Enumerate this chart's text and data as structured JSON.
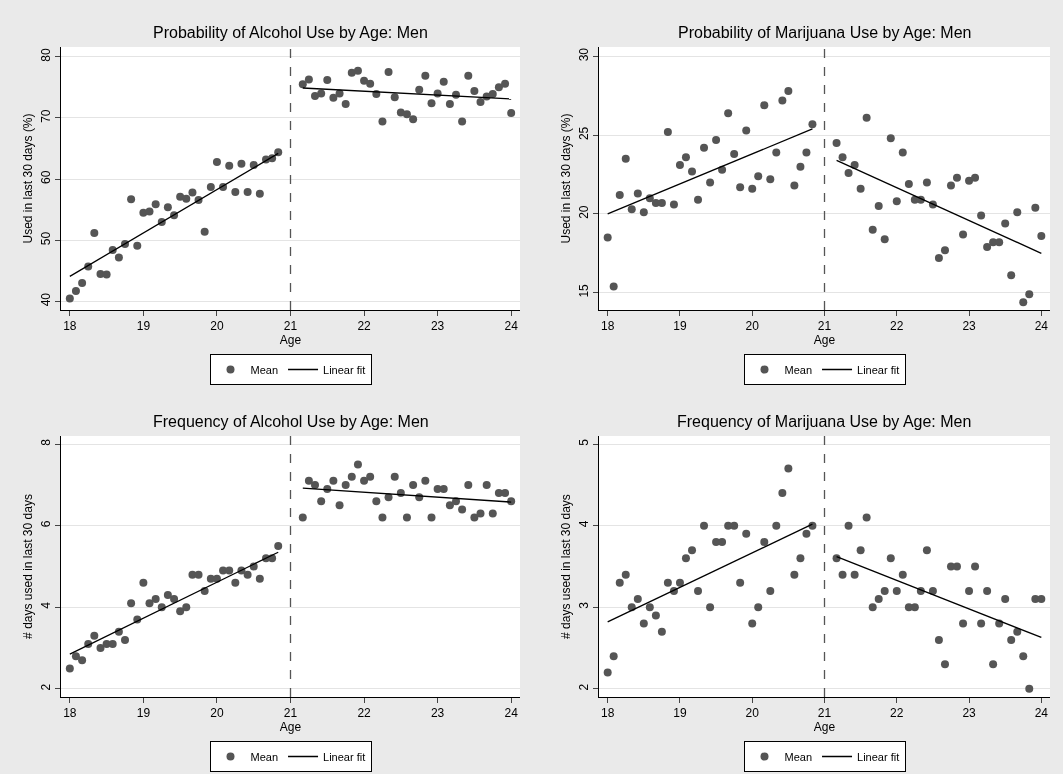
{
  "chart_data": [
    {
      "type": "scatter",
      "title": "Probability of Alcohol Use by Age: Men",
      "xlabel": "Age",
      "ylabel": "Used in last 30 days (%)",
      "xlim": [
        17.88,
        24.12
      ],
      "xticks": [
        18,
        19,
        20,
        21,
        22,
        23,
        24
      ],
      "ylim": [
        38.6,
        81.6
      ],
      "yticks": [
        40,
        50,
        60,
        70,
        80
      ],
      "grid": "y",
      "legend": "bottom",
      "ref_lines": [
        {
          "axis": "x",
          "value": 21,
          "color": "#555555",
          "line_style": "dashed"
        }
      ],
      "x": [
        18,
        18.083,
        18.167,
        18.25,
        18.333,
        18.417,
        18.5,
        18.583,
        18.667,
        18.75,
        18.833,
        18.917,
        19,
        19.083,
        19.167,
        19.25,
        19.333,
        19.417,
        19.5,
        19.583,
        19.667,
        19.75,
        19.833,
        19.917,
        20,
        20.083,
        20.167,
        20.25,
        20.333,
        20.417,
        20.5,
        20.583,
        20.667,
        20.75,
        20.833,
        21.167,
        21.25,
        21.333,
        21.417,
        21.5,
        21.583,
        21.667,
        21.75,
        21.833,
        21.917,
        22,
        22.083,
        22.167,
        22.25,
        22.333,
        22.417,
        22.5,
        22.583,
        22.667,
        22.75,
        22.833,
        22.917,
        23,
        23.083,
        23.167,
        23.25,
        23.333,
        23.417,
        23.5,
        23.583,
        23.667,
        23.75,
        23.833,
        23.917,
        24
      ],
      "series": [
        {
          "name": "Mean",
          "marker": "circle",
          "color": "#555555",
          "values": [
            40.5,
            41.7,
            43.0,
            45.7,
            51.2,
            44.5,
            44.4,
            48.4,
            47.2,
            49.4,
            56.7,
            49.1,
            54.5,
            54.7,
            55.9,
            53.0,
            55.4,
            54.1,
            57.1,
            56.8,
            57.8,
            56.6,
            51.4,
            58.7,
            62.8,
            58.7,
            62.2,
            57.9,
            62.5,
            57.9,
            62.3,
            57.6,
            63.2,
            63.4,
            64.4,
            75.5,
            76.3,
            73.6,
            74.0,
            76.2,
            73.3,
            74.0,
            72.3,
            77.4,
            77.7,
            76.1,
            75.6,
            73.9,
            69.4,
            77.5,
            73.4,
            70.9,
            70.6,
            69.8,
            74.6,
            76.9,
            72.4,
            74.0,
            75.9,
            72.3,
            73.8,
            69.4,
            76.9,
            74.4,
            72.6,
            73.5,
            73.9,
            75.0,
            75.6,
            70.8
          ]
        },
        {
          "name": "Linear fit",
          "type": "line",
          "color": "#000000",
          "line_style": "solid",
          "x": [
            18,
            20.833,
            21,
            21.167,
            24
          ],
          "values": [
            44.1,
            64.2,
            null,
            74.9,
            73.1
          ]
        }
      ]
    },
    {
      "type": "scatter",
      "title": "Probability of Marijuana Use by Age: Men",
      "xlabel": "Age",
      "ylabel": "Used in last 30 days (%)",
      "xlim": [
        17.88,
        24.12
      ],
      "xticks": [
        18,
        19,
        20,
        21,
        22,
        23,
        24
      ],
      "ylim": [
        13.9,
        30.6
      ],
      "yticks": [
        15,
        20,
        25,
        30
      ],
      "grid": "y",
      "legend": "bottom",
      "ref_lines": [
        {
          "axis": "x",
          "value": 21,
          "color": "#555555",
          "line_style": "dashed"
        }
      ],
      "x": [
        18,
        18.083,
        18.167,
        18.25,
        18.333,
        18.417,
        18.5,
        18.583,
        18.667,
        18.75,
        18.833,
        18.917,
        19,
        19.083,
        19.167,
        19.25,
        19.333,
        19.417,
        19.5,
        19.583,
        19.667,
        19.75,
        19.833,
        19.917,
        20,
        20.083,
        20.167,
        20.25,
        20.333,
        20.417,
        20.5,
        20.583,
        20.667,
        20.75,
        20.833,
        21.167,
        21.25,
        21.333,
        21.417,
        21.5,
        21.583,
        21.667,
        21.75,
        21.833,
        21.917,
        22,
        22.083,
        22.167,
        22.25,
        22.333,
        22.417,
        22.5,
        22.583,
        22.667,
        22.75,
        22.833,
        22.917,
        23,
        23.083,
        23.167,
        23.25,
        23.333,
        23.417,
        23.5,
        23.583,
        23.667,
        23.75,
        23.833,
        23.917,
        24
      ],
      "series": [
        {
          "name": "Mean",
          "marker": "circle",
          "color": "#555555",
          "values": [
            18.5,
            15.4,
            21.2,
            23.5,
            20.3,
            21.3,
            20.1,
            21.0,
            20.7,
            20.7,
            25.2,
            20.6,
            23.1,
            23.6,
            22.7,
            20.9,
            24.2,
            22.0,
            24.7,
            22.8,
            26.4,
            23.8,
            21.7,
            25.3,
            21.6,
            22.4,
            26.9,
            22.2,
            23.9,
            27.2,
            27.8,
            21.8,
            23.0,
            23.9,
            25.7,
            24.5,
            23.6,
            22.6,
            23.1,
            21.6,
            26.1,
            19.0,
            20.5,
            18.4,
            24.8,
            20.8,
            23.9,
            21.9,
            20.9,
            20.9,
            22.0,
            20.6,
            17.2,
            17.7,
            21.8,
            22.3,
            18.7,
            22.1,
            22.3,
            19.9,
            17.9,
            18.2,
            18.2,
            19.4,
            16.1,
            20.1,
            14.4,
            14.9,
            20.4,
            18.6
          ]
        },
        {
          "name": "Linear fit",
          "type": "line",
          "color": "#000000",
          "line_style": "solid",
          "x": [
            18,
            20.833,
            21,
            21.167,
            24
          ],
          "values": [
            20.0,
            25.4,
            null,
            23.4,
            17.5
          ]
        }
      ]
    },
    {
      "type": "scatter",
      "title": "Frequency of Alcohol Use by Age: Men",
      "xlabel": "Age",
      "ylabel": "# days used in last 30 days",
      "xlim": [
        17.88,
        24.12
      ],
      "xticks": [
        18,
        19,
        20,
        21,
        22,
        23,
        24
      ],
      "ylim": [
        1.8,
        8.2
      ],
      "yticks": [
        2,
        4,
        6,
        8
      ],
      "grid": "y",
      "legend": "bottom",
      "ref_lines": [
        {
          "axis": "x",
          "value": 21,
          "color": "#555555",
          "line_style": "dashed"
        }
      ],
      "x": [
        18,
        18.083,
        18.167,
        18.25,
        18.333,
        18.417,
        18.5,
        18.583,
        18.667,
        18.75,
        18.833,
        18.917,
        19,
        19.083,
        19.167,
        19.25,
        19.333,
        19.417,
        19.5,
        19.583,
        19.667,
        19.75,
        19.833,
        19.917,
        20,
        20.083,
        20.167,
        20.25,
        20.333,
        20.417,
        20.5,
        20.583,
        20.667,
        20.75,
        20.833,
        21.167,
        21.25,
        21.333,
        21.417,
        21.5,
        21.583,
        21.667,
        21.75,
        21.833,
        21.917,
        22,
        22.083,
        22.167,
        22.25,
        22.333,
        22.417,
        22.5,
        22.583,
        22.667,
        22.75,
        22.833,
        22.917,
        23,
        23.083,
        23.167,
        23.25,
        23.333,
        23.417,
        23.5,
        23.583,
        23.667,
        23.75,
        23.833,
        23.917,
        24
      ],
      "series": [
        {
          "name": "Mean",
          "marker": "circle",
          "color": "#555555",
          "values": [
            2.5,
            2.8,
            2.7,
            3.1,
            3.3,
            3.0,
            3.1,
            3.1,
            3.4,
            3.2,
            4.1,
            3.7,
            4.6,
            4.1,
            4.2,
            4.0,
            4.3,
            4.2,
            3.9,
            4.0,
            4.8,
            4.8,
            4.4,
            4.7,
            4.7,
            4.9,
            4.9,
            4.6,
            4.9,
            4.8,
            5.0,
            4.7,
            5.2,
            5.2,
            5.5,
            6.2,
            7.1,
            7.0,
            6.6,
            6.9,
            7.1,
            6.5,
            7.0,
            7.2,
            7.5,
            7.1,
            7.2,
            6.6,
            6.2,
            6.7,
            7.2,
            6.8,
            6.2,
            7.0,
            6.7,
            7.1,
            6.2,
            6.9,
            6.9,
            6.5,
            6.6,
            6.4,
            7.0,
            6.2,
            6.3,
            7.0,
            6.3,
            6.8,
            6.8,
            6.6
          ]
        },
        {
          "name": "Linear fit",
          "type": "line",
          "color": "#000000",
          "line_style": "solid",
          "x": [
            18,
            20.833,
            21,
            21.167,
            24
          ],
          "values": [
            2.85,
            5.35,
            null,
            6.92,
            6.58
          ]
        }
      ]
    },
    {
      "type": "scatter",
      "title": "Frequency of Marijuana Use by Age: Men",
      "xlabel": "Age",
      "ylabel": "# days used in last 30 days",
      "xlim": [
        17.88,
        24.12
      ],
      "xticks": [
        18,
        19,
        20,
        21,
        22,
        23,
        24
      ],
      "ylim": [
        1.9,
        5.1
      ],
      "yticks": [
        2,
        3,
        4,
        5
      ],
      "grid": "y",
      "legend": "bottom",
      "ref_lines": [
        {
          "axis": "x",
          "value": 21,
          "color": "#555555",
          "line_style": "dashed"
        }
      ],
      "x": [
        18,
        18.083,
        18.167,
        18.25,
        18.333,
        18.417,
        18.5,
        18.583,
        18.667,
        18.75,
        18.833,
        18.917,
        19,
        19.083,
        19.167,
        19.25,
        19.333,
        19.417,
        19.5,
        19.583,
        19.667,
        19.75,
        19.833,
        19.917,
        20,
        20.083,
        20.167,
        20.25,
        20.333,
        20.417,
        20.5,
        20.583,
        20.667,
        20.75,
        20.833,
        21.167,
        21.25,
        21.333,
        21.417,
        21.5,
        21.583,
        21.667,
        21.75,
        21.833,
        21.917,
        22,
        22.083,
        22.167,
        22.25,
        22.333,
        22.417,
        22.5,
        22.583,
        22.667,
        22.75,
        22.833,
        22.917,
        23,
        23.083,
        23.167,
        23.25,
        23.333,
        23.417,
        23.5,
        23.583,
        23.667,
        23.75,
        23.833,
        23.917,
        24
      ],
      "series": [
        {
          "name": "Mean",
          "marker": "circle",
          "color": "#555555",
          "values": [
            2.2,
            2.4,
            3.3,
            3.4,
            3.0,
            3.1,
            2.8,
            3.0,
            2.9,
            2.7,
            3.3,
            3.2,
            3.3,
            3.6,
            3.7,
            3.2,
            4.0,
            3.0,
            3.8,
            3.8,
            4.0,
            4.0,
            3.3,
            3.9,
            2.8,
            3.0,
            3.8,
            3.2,
            4.0,
            4.4,
            4.7,
            3.4,
            3.6,
            3.9,
            4.0,
            3.6,
            3.4,
            4.0,
            3.4,
            3.7,
            4.1,
            3.0,
            3.1,
            3.2,
            3.6,
            3.2,
            3.4,
            3.0,
            3.0,
            3.2,
            3.7,
            3.2,
            2.6,
            2.3,
            3.5,
            3.5,
            2.8,
            3.2,
            3.5,
            2.8,
            3.2,
            2.3,
            2.8,
            3.1,
            2.6,
            2.7,
            2.4,
            2.0,
            3.1,
            3.1
          ]
        },
        {
          "name": "Linear fit",
          "type": "line",
          "color": "#000000",
          "line_style": "solid",
          "x": [
            18,
            20.833,
            21,
            21.167,
            24
          ],
          "values": [
            2.82,
            4.02,
            null,
            3.62,
            2.63
          ]
        }
      ]
    }
  ]
}
